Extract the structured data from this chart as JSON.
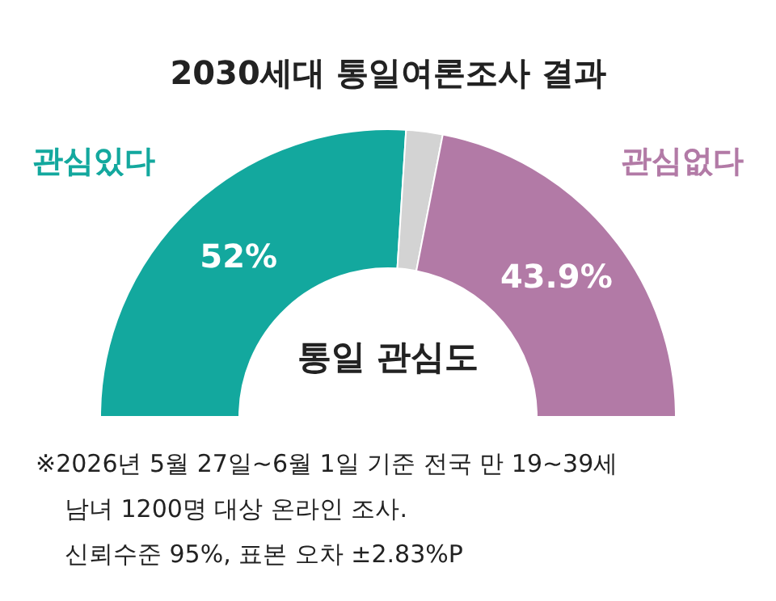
{
  "chart_data": {
    "type": "donut",
    "title": "2030세대 통일여론조사 결과",
    "categories": [
      "관심있다",
      null,
      "관심없다"
    ],
    "values": [
      52,
      4.1,
      43.9
    ],
    "colors": [
      "#13a89e",
      "#d3d3d3",
      "#b27aa6"
    ],
    "value_labels": [
      "52%",
      null,
      "43.9%"
    ],
    "annotations": [
      "통일 관심도",
      "※2026년 5월 27일~6월 1일 기준 전국 만 19~39세",
      "남녀 1200명 대상 온라인 조사.",
      "신뢰수준 95%, 표본 오차 ±2.83%P"
    ]
  }
}
